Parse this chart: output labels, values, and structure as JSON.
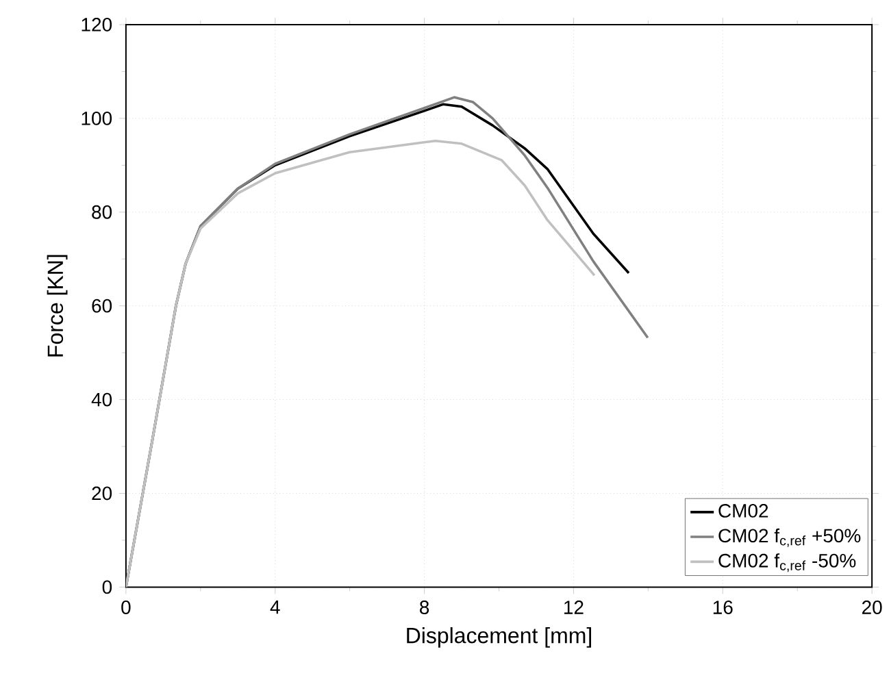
{
  "chart_data": {
    "type": "line",
    "xlabel": "Displacement [mm]",
    "ylabel": "Force [KN]",
    "xlim": [
      0,
      20
    ],
    "ylim": [
      0,
      120
    ],
    "xticks": [
      0,
      4,
      8,
      12,
      16,
      20
    ],
    "yticks": [
      0,
      20,
      40,
      60,
      80,
      100,
      120
    ],
    "grid": true,
    "legend": "bottom right",
    "marker": "none",
    "line_style": "solid",
    "series": [
      {
        "name": "CM02",
        "color": "#000000",
        "x": [
          0,
          0.7,
          1.34,
          1.6,
          2,
          3,
          4,
          6,
          8,
          8.5,
          9.0,
          9.83,
          10.69,
          11.3,
          12.53,
          13.48
        ],
        "values": [
          0,
          31,
          60,
          69,
          77,
          85,
          90,
          96.2,
          101.6,
          103,
          102.5,
          98.5,
          93.6,
          89.2,
          75.4,
          67
        ]
      },
      {
        "name": "CM02 f$_{c,ref}$ +50%",
        "color": "#808080",
        "x": [
          0,
          0.7,
          1.34,
          1.6,
          2,
          3,
          4,
          6,
          8,
          8.8,
          9.3,
          9.83,
          10.69,
          11.3,
          12.53,
          13.99
        ],
        "values": [
          0,
          31,
          60,
          69,
          77,
          85,
          90.3,
          96.6,
          102.2,
          104.5,
          103.5,
          100,
          92.1,
          85.2,
          69.5,
          53.2
        ]
      },
      {
        "name": "CM02 f$_{c,ref}$ -50%",
        "color": "#c0c0c0",
        "x": [
          0,
          0.7,
          1.34,
          1.6,
          2,
          3,
          4,
          6,
          8,
          8.3,
          9.0,
          10.07,
          10.69,
          11.3,
          12.56
        ],
        "values": [
          0,
          31,
          60,
          69,
          76.5,
          84,
          88.3,
          92.8,
          94.9,
          95.2,
          94.6,
          91.1,
          85.7,
          78.3,
          66.5
        ]
      }
    ]
  }
}
